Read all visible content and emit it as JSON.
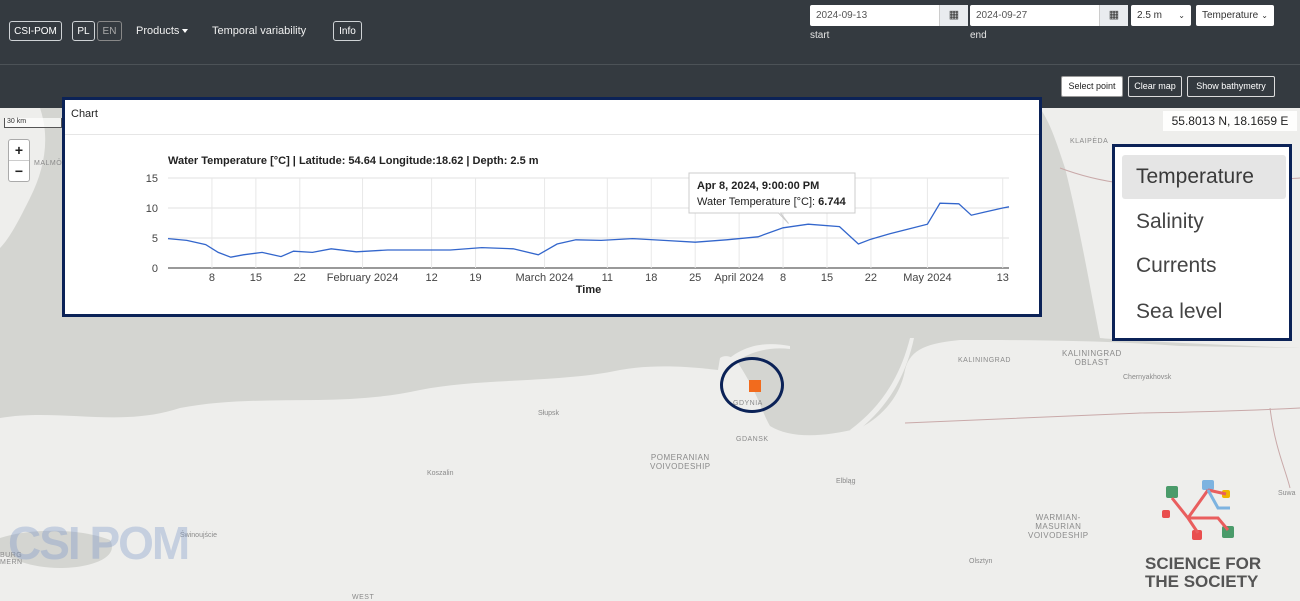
{
  "navbar": {
    "brand": "CSI-POM",
    "lang_pl": "PL",
    "lang_en": "EN",
    "products": "Products",
    "temporal": "Temporal variability",
    "info": "Info",
    "start_date": "2024-09-13",
    "start_label": "start",
    "end_date": "2024-09-27",
    "end_label": "end",
    "depth": "2.5 m",
    "variable": "Temperature",
    "calendar_icon": "calendar-icon"
  },
  "toolbar": {
    "select_point": "Select point",
    "clear_map": "Clear map",
    "show_bathymetry": "Show bathymetry"
  },
  "map": {
    "scale": "30 km",
    "zoom_in": "+",
    "zoom_out": "−",
    "coords": "55.8013 N, 18.1659 E",
    "labels": {
      "malmo": "MALMÖ",
      "klaipeda": "KLAIPĖDA",
      "kaliningrad": "KALININGRAD",
      "kaliningrad_oblast_1": "KALININGRAD",
      "kaliningrad_oblast_2": "OBLAST",
      "chernyakhovsk": "Chernyakhovsk",
      "gdynia": "GDYNIA",
      "gdansk": "GDANSK",
      "slupsk": "Słupsk",
      "koszalin": "Koszalin",
      "swinoujscie": "Świnoujście",
      "elblag": "Elbląg",
      "olsztyn": "Olsztyn",
      "suwalki": "Suwa",
      "pomeranian_1": "POMERANIAN",
      "pomeranian_2": "VOIVODESHIP",
      "warmian_1": "WARMIAN-",
      "warmian_2": "MASURIAN",
      "warmian_3": "VOIVODESHIP",
      "west": "WEST",
      "burg_1": "BURG",
      "burg_2": "MERN"
    }
  },
  "chart_panel": {
    "header": "Chart"
  },
  "chart_data": {
    "type": "line",
    "title": "Water Temperature [°C] | Latitude: 54.64 Longitude:18.62 | Depth: 2.5 m",
    "xlabel": "Time",
    "ylabel": "",
    "ylim": [
      0,
      15
    ],
    "yticks": [
      "0",
      "5",
      "10",
      "15"
    ],
    "xticks": [
      "8",
      "15",
      "22",
      "February 2024",
      "12",
      "19",
      "March 2024",
      "11",
      "18",
      "25",
      "April 2024",
      "8",
      "15",
      "22",
      "May 2024",
      "13"
    ],
    "series": [
      {
        "name": "Water Temperature [°C]",
        "x": [
          "2024-01-01",
          "2024-01-04",
          "2024-01-07",
          "2024-01-09",
          "2024-01-11",
          "2024-01-13",
          "2024-01-16",
          "2024-01-19",
          "2024-01-21",
          "2024-01-24",
          "2024-01-27",
          "2024-01-31",
          "2024-02-05",
          "2024-02-10",
          "2024-02-15",
          "2024-02-20",
          "2024-02-25",
          "2024-02-29",
          "2024-03-03",
          "2024-03-06",
          "2024-03-10",
          "2024-03-15",
          "2024-03-20",
          "2024-03-25",
          "2024-03-30",
          "2024-04-04",
          "2024-04-08",
          "2024-04-12",
          "2024-04-17",
          "2024-04-20",
          "2024-04-22",
          "2024-04-25",
          "2024-04-28",
          "2024-05-01",
          "2024-05-03",
          "2024-05-06",
          "2024-05-08",
          "2024-05-10",
          "2024-05-13",
          "2024-05-14"
        ],
        "values": [
          4.9,
          4.6,
          3.9,
          2.6,
          1.8,
          2.2,
          2.6,
          1.9,
          2.8,
          2.6,
          3.2,
          2.7,
          3.0,
          3.0,
          3.0,
          3.4,
          3.2,
          2.2,
          4.0,
          4.7,
          4.6,
          4.9,
          4.6,
          4.3,
          4.7,
          5.2,
          6.7,
          7.3,
          6.9,
          4.0,
          4.8,
          5.7,
          6.5,
          7.3,
          10.8,
          10.7,
          8.8,
          9.3,
          10.0,
          10.2
        ]
      }
    ],
    "tooltip": {
      "date": "Apr 8, 2024, 9:00:00 PM",
      "label": "Water Temperature [°C]: ",
      "value": "6.744"
    },
    "line_color": "#3366cc",
    "grid": true
  },
  "variables": {
    "items": [
      "Temperature",
      "Salinity",
      "Currents",
      "Sea level"
    ],
    "active": "Temperature"
  },
  "branding": {
    "watermark": "CSI POM",
    "science_1": "SCIENCE FOR",
    "science_2": "THE SOCIETY"
  },
  "colors": {
    "navbar": "#343a40",
    "accent_border": "#0b2257",
    "marker": "#f26b1d",
    "series": "#3366cc"
  }
}
